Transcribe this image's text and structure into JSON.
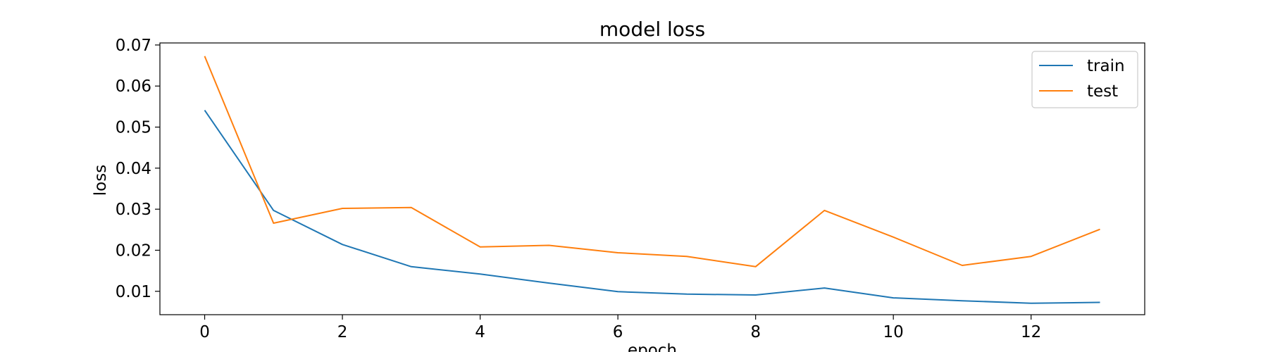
{
  "chart_data": {
    "type": "line",
    "title": "model loss",
    "xlabel": "epoch",
    "ylabel": "loss",
    "x": [
      0,
      1,
      2,
      3,
      4,
      5,
      6,
      7,
      8,
      9,
      10,
      11,
      12,
      13
    ],
    "xlim": [
      -0.65,
      13.65
    ],
    "ylim": [
      0.0043,
      0.0705
    ],
    "xticks": [
      0,
      2,
      4,
      6,
      8,
      10,
      12
    ],
    "yticks": [
      0.01,
      0.02,
      0.03,
      0.04,
      0.05,
      0.06,
      0.07
    ],
    "ytick_labels": [
      "0.01",
      "0.02",
      "0.03",
      "0.04",
      "0.05",
      "0.06",
      "0.07"
    ],
    "grid": false,
    "legend_position": "top-right",
    "series": [
      {
        "name": "train",
        "color": "#1f77b4",
        "values": [
          0.0541,
          0.0297,
          0.0214,
          0.016,
          0.0142,
          0.012,
          0.0099,
          0.0093,
          0.0091,
          0.0108,
          0.0084,
          0.0077,
          0.0071,
          0.0073
        ]
      },
      {
        "name": "test",
        "color": "#ff7f0e",
        "values": [
          0.0673,
          0.0266,
          0.0302,
          0.0304,
          0.0208,
          0.0212,
          0.0194,
          0.0185,
          0.016,
          0.0297,
          0.0232,
          0.0163,
          0.0185,
          0.0251
        ]
      }
    ]
  }
}
